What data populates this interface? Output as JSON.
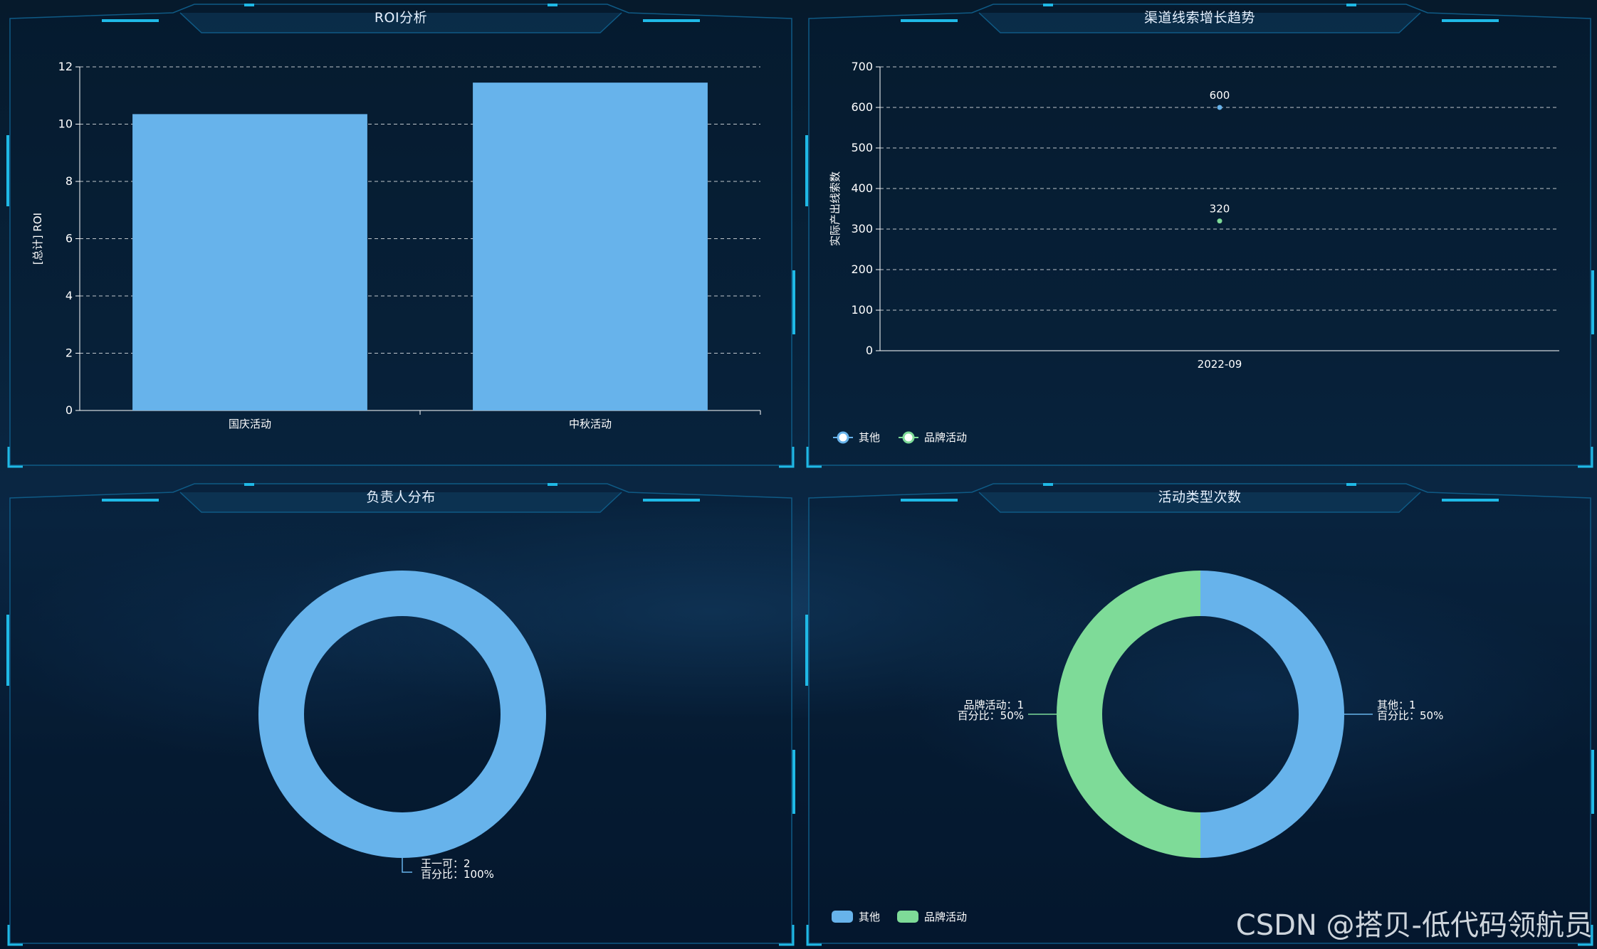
{
  "colors": {
    "series_other": "#67b3eb",
    "series_brand": "#7edb98",
    "frame": "#1fb9e6",
    "frame_dim": "#0f5a85"
  },
  "panels": {
    "roi": {
      "title": "ROI分析"
    },
    "leads": {
      "title": "渠道线索增长趋势"
    },
    "owner": {
      "title": "负责人分布"
    },
    "types": {
      "title": "活动类型次数"
    }
  },
  "watermark": "CSDN @搭贝-低代码领航员",
  "chart_data": [
    {
      "id": "roi",
      "type": "bar",
      "categories": [
        "国庆活动",
        "中秋活动"
      ],
      "values": [
        10.35,
        11.45
      ],
      "ylabel": "[总计] ROI",
      "ylim": [
        0,
        12
      ],
      "yticks": [
        0,
        2,
        4,
        6,
        8,
        10,
        12
      ],
      "grid": true
    },
    {
      "id": "leads",
      "type": "scatter",
      "x": [
        "2022-09"
      ],
      "series": [
        {
          "name": "其他",
          "values": [
            600
          ],
          "labels": [
            "600"
          ]
        },
        {
          "name": "品牌活动",
          "values": [
            320
          ],
          "labels": [
            "320"
          ]
        }
      ],
      "ylabel": "实际产出线索数",
      "ylim": [
        0,
        700
      ],
      "yticks": [
        0,
        100,
        200,
        300,
        400,
        500,
        600,
        700
      ],
      "grid": true,
      "legend": "bottom-left"
    },
    {
      "id": "owner",
      "type": "pie",
      "donut": true,
      "slices": [
        {
          "name": "王一可",
          "value": 2,
          "label_line1": "王一可：2",
          "label_line2": "百分比：100%"
        }
      ]
    },
    {
      "id": "types",
      "type": "pie",
      "donut": true,
      "slices": [
        {
          "name": "其他",
          "value": 1,
          "label_line1": "其他：1",
          "label_line2": "百分比：50%"
        },
        {
          "name": "品牌活动",
          "value": 1,
          "label_line1": "品牌活动：1",
          "label_line2": "百分比：50%"
        }
      ],
      "legend": "bottom-left"
    }
  ]
}
